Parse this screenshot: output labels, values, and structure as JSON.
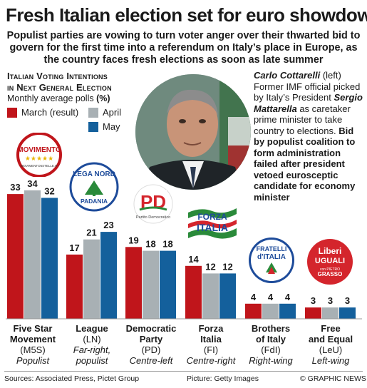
{
  "title": "Fresh Italian election set for euro showdown",
  "subtitle": "Populist parties are vowing to turn voter anger over their thwarted bid to govern for the first time into a referendum on Italy’s place in Europe, as the country faces fresh elections as soon as late summer",
  "section_title_line1": "Italian Voting Intentions",
  "section_title_line2": "in Next General Election",
  "poll_label": "Monthly average polls",
  "poll_unit": "(%)",
  "caption": {
    "name": "Carlo Cottarelli",
    "name_note": "(left)",
    "text1": "Former IMF official picked by Italy’s President",
    "president": "Sergio Mattarella",
    "text2": "as caretaker prime minister to take country to elections.",
    "bold_text": "Bid by populist coalition to form administration failed after president vetoed eurosceptic candidate for economy minister"
  },
  "logos": {
    "m5s_text": "MOVIMENTO",
    "m5s_url": "MOVIMENTO5STELLE.IT",
    "lega_top": "LEGA NORD",
    "lega_bottom": "PADANIA",
    "pd_text": "PD",
    "pd_sub": "Partito Democratico",
    "fi_line1": "FORZA",
    "fi_line2": "ITALIA",
    "fdi_line1": "FRATELLI",
    "fdi_line2": "d'ITALIA",
    "leu_line1": "Liberi",
    "leu_line2": "UGUALI",
    "leu_sub": "con PIETRO",
    "leu_name": "GRASSO"
  },
  "footer": {
    "sources": "Sources: Associated Press, Pictet Group",
    "picture": "Picture: Getty Images",
    "credit": "© GRAPHIC NEWS"
  },
  "colors": {
    "march": "#c0151b",
    "april": "#a8b0b4",
    "may": "#14609c"
  },
  "icons": {
    "credit": "copyright-sign"
  },
  "chart_data": {
    "type": "bar",
    "categories": [
      "Five Star Movement",
      "League",
      "Democratic Party",
      "Forza Italia",
      "Brothers of Italy",
      "Free and Equal"
    ],
    "party_lines": [
      {
        "line1": "Five Star",
        "line2": "Movement",
        "abbr": "(M5S)",
        "lean": "Populist"
      },
      {
        "line1": "League",
        "line2": "",
        "abbr": "(LN)",
        "lean": "Far-right, populist"
      },
      {
        "line1": "Democratic",
        "line2": "Party",
        "abbr": "(PD)",
        "lean": "Centre-left"
      },
      {
        "line1": "Forza",
        "line2": "Italia",
        "abbr": "(FI)",
        "lean": "Centre-right"
      },
      {
        "line1": "Brothers",
        "line2": "of Italy",
        "abbr": "(FdI)",
        "lean": "Right-wing"
      },
      {
        "line1": "Free",
        "line2": "and Equal",
        "abbr": "(LeU)",
        "lean": "Left-wing"
      }
    ],
    "series": [
      {
        "name": "March (result)",
        "values": [
          33,
          17,
          19,
          14,
          4,
          3
        ]
      },
      {
        "name": "April",
        "values": [
          34,
          21,
          18,
          12,
          4,
          3
        ]
      },
      {
        "name": "May",
        "values": [
          32,
          23,
          18,
          12,
          4,
          3
        ]
      }
    ],
    "title": "Italian Voting Intentions in Next General Election",
    "ylabel": "Monthly average polls (%)",
    "ylim": [
      0,
      35
    ],
    "legend_position": "top-left",
    "grid": false
  }
}
